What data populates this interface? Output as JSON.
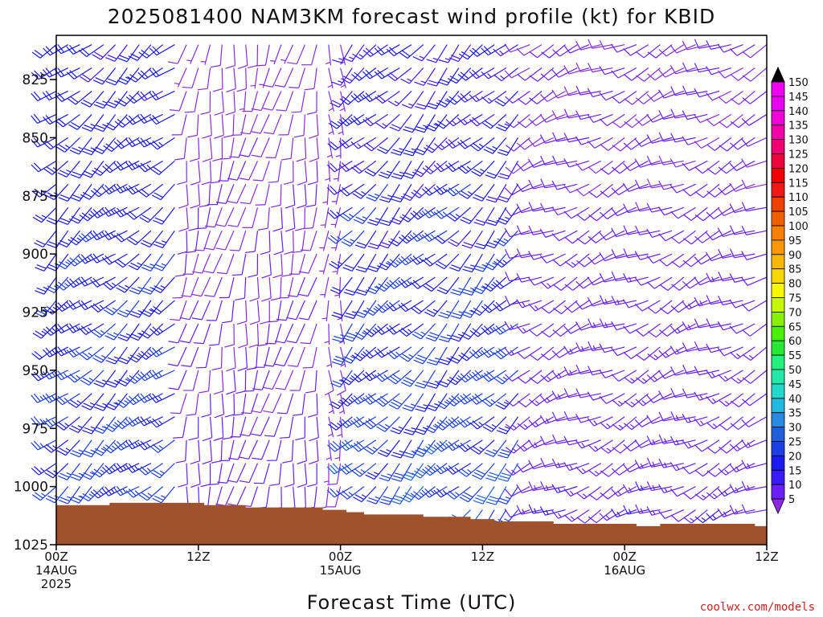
{
  "chart_data": {
    "type": "wind-barb",
    "title": "2025081400 NAM3KM forecast wind profile (kt) for KBID",
    "xlabel": "Forecast Time (UTC)",
    "credit": "coolwx.com/models",
    "x_range_hours": [
      0,
      60
    ],
    "y_range_mb": [
      1025,
      806
    ],
    "y_ticks": [
      825,
      850,
      875,
      900,
      925,
      950,
      975,
      1000,
      1025
    ],
    "x_ticks": [
      {
        "hour": 0,
        "line1": "00Z",
        "line2": "14AUG",
        "line3": "2025"
      },
      {
        "hour": 12,
        "line1": "12Z",
        "line2": "",
        "line3": ""
      },
      {
        "hour": 24,
        "line1": "00Z",
        "line2": "15AUG",
        "line3": ""
      },
      {
        "hour": 36,
        "line1": "12Z",
        "line2": "",
        "line3": ""
      },
      {
        "hour": 48,
        "line1": "00Z",
        "line2": "16AUG",
        "line3": ""
      },
      {
        "hour": 60,
        "line1": "12Z",
        "line2": "",
        "line3": ""
      }
    ],
    "surface_pressure_mb": [
      {
        "hour": 0,
        "mb": 1008
      },
      {
        "hour": 4,
        "mb": 1008
      },
      {
        "hour": 4.5,
        "mb": 1007
      },
      {
        "hour": 10.5,
        "mb": 1007
      },
      {
        "hour": 12.5,
        "mb": 1008
      },
      {
        "hour": 16,
        "mb": 1009
      },
      {
        "hour": 22.5,
        "mb": 1010
      },
      {
        "hour": 24.5,
        "mb": 1011
      },
      {
        "hour": 26,
        "mb": 1012
      },
      {
        "hour": 31,
        "mb": 1013
      },
      {
        "hour": 35,
        "mb": 1014
      },
      {
        "hour": 37,
        "mb": 1015
      },
      {
        "hour": 42,
        "mb": 1016
      },
      {
        "hour": 49,
        "mb": 1017
      },
      {
        "hour": 51,
        "mb": 1016
      },
      {
        "hour": 59,
        "mb": 1017
      },
      {
        "hour": 60,
        "mb": 1016
      }
    ],
    "surface_color": "#a0522d",
    "barb_column_hours": [
      0,
      1,
      2,
      3,
      4,
      5,
      6,
      7,
      8,
      9,
      10,
      11,
      12,
      13,
      14,
      15,
      16,
      17,
      18,
      19,
      20,
      21,
      22,
      23,
      24,
      25,
      26,
      27,
      28,
      29,
      30,
      31,
      32,
      33,
      34,
      35,
      36,
      37,
      38,
      39,
      40,
      41,
      42,
      43,
      44,
      45,
      46,
      47,
      48,
      49,
      50,
      51,
      52,
      53,
      54,
      55,
      56,
      57,
      58,
      59,
      60
    ],
    "barb_levels_mb": [
      810,
      820,
      830,
      840,
      850,
      860,
      870,
      880,
      890,
      900,
      910,
      920,
      930,
      940,
      950,
      960,
      970,
      980,
      990,
      1000,
      1010,
      1020
    ],
    "wind_regimes": [
      {
        "hours": [
          0,
          10
        ],
        "direction_deg": 230,
        "speed_kt": [
          15,
          28
        ]
      },
      {
        "hours": [
          11,
          22
        ],
        "direction_deg": 190,
        "speed_kt": [
          5,
          12
        ]
      },
      {
        "hours": [
          23,
          24
        ],
        "direction_deg": 180,
        "speed_kt": [
          5,
          8
        ]
      },
      {
        "hours": [
          25,
          39
        ],
        "direction_deg": 225,
        "speed_kt": [
          8,
          32
        ]
      },
      {
        "hours": [
          40,
          60
        ],
        "direction_deg": 245,
        "speed_kt": [
          5,
          15
        ]
      }
    ],
    "colorbar": {
      "ticks": [
        5,
        10,
        15,
        20,
        25,
        30,
        35,
        40,
        45,
        50,
        55,
        60,
        65,
        70,
        75,
        80,
        85,
        90,
        95,
        100,
        105,
        110,
        115,
        120,
        125,
        130,
        135,
        140,
        145,
        150
      ],
      "colors": [
        "#8a2be2",
        "#6a1fff",
        "#3a1aff",
        "#1a1aee",
        "#1c3fe6",
        "#1f5fdc",
        "#2a8ae0",
        "#22b8e0",
        "#22d8c8",
        "#22e8a8",
        "#22f080",
        "#28e838",
        "#48f000",
        "#88f000",
        "#c8f800",
        "#f8f800",
        "#f8d800",
        "#f8b800",
        "#f89800",
        "#f88000",
        "#f06000",
        "#f04000",
        "#f01818",
        "#f00000",
        "#f0003a",
        "#f00070",
        "#f000a8",
        "#f000d8",
        "#e800f0",
        "#f000f0"
      ]
    }
  }
}
